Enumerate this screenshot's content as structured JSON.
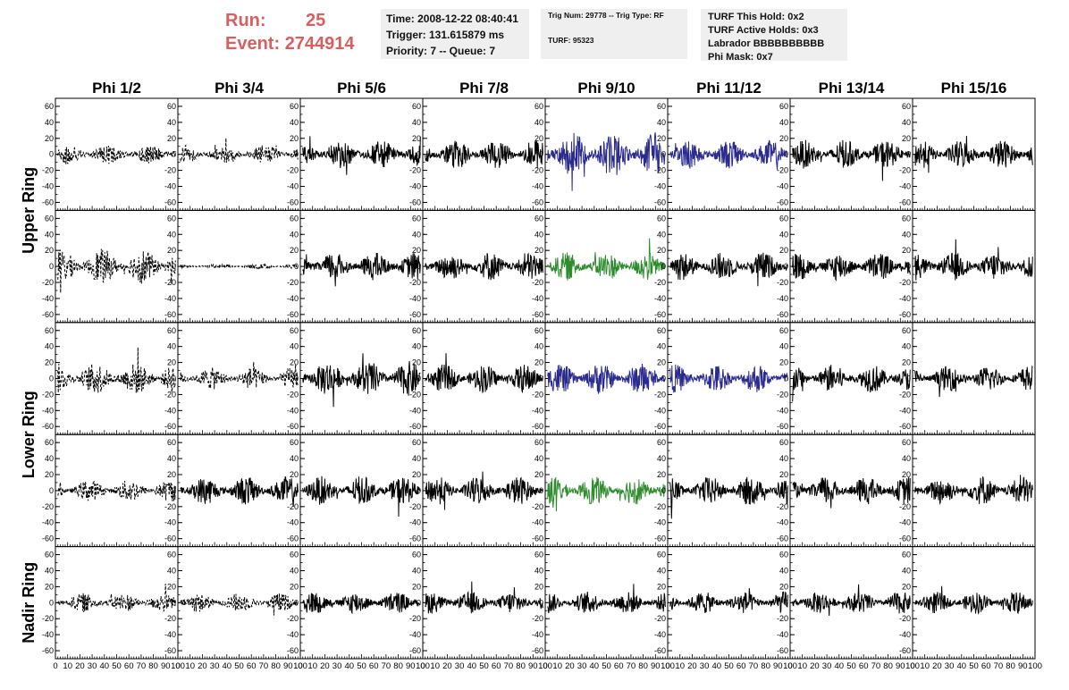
{
  "header": {
    "run_label": "Run:",
    "run_value": "25",
    "event_label": "Event:",
    "event_value": "2744914"
  },
  "info": {
    "time": "Time: 2008-12-22 08:40:41",
    "trigger": "Trigger: 131.615879 ms",
    "priority": "Priority: 7 -- Queue: 7",
    "trig_num": "Trig Num: 29778 -- Trig Type: RF",
    "turf": "TURF: 95323",
    "turf_this_hold": "TURF This Hold: 0x2",
    "turf_active_holds": "TURF Active Holds: 0x3",
    "labrador": "Labrador BBBBBBBBBB",
    "phi_mask": "Phi Mask: 0x7"
  },
  "chart_data": {
    "type": "line",
    "columns": [
      "Phi 1/2",
      "Phi 3/4",
      "Phi 5/6",
      "Phi 7/8",
      "Phi 9/10",
      "Phi 11/12",
      "Phi 13/14",
      "Phi 15/16"
    ],
    "ring_labels": [
      "Upper Ring",
      "Lower Ring",
      "Nadir Ring"
    ],
    "rows": 5,
    "xlim": [
      0,
      100
    ],
    "ylim": [
      -70,
      70
    ],
    "x_ticks": [
      "0",
      "10",
      "20",
      "30",
      "40",
      "50",
      "60",
      "70",
      "80",
      "90",
      "100"
    ],
    "y_ticks": [
      "-60",
      "-40",
      "-20",
      "0",
      "20",
      "40",
      "60"
    ],
    "colors": {
      "default": "#000000",
      "blue": "#2a2a8f",
      "green": "#2e8b2e"
    },
    "panel_styles": [
      [
        "dashed",
        "dashed",
        "solid",
        "solid",
        "blue",
        "blue",
        "solid",
        "solid"
      ],
      [
        "dashed",
        "dashed",
        "solid",
        "solid",
        "green",
        "solid",
        "solid",
        "solid"
      ],
      [
        "dashed",
        "dashed",
        "solid",
        "solid",
        "blue",
        "blue",
        "solid",
        "solid"
      ],
      [
        "dashed",
        "solid",
        "solid",
        "solid",
        "green",
        "solid",
        "solid",
        "solid"
      ],
      [
        "dashed",
        "dashed",
        "solid",
        "solid",
        "solid",
        "solid",
        "solid",
        "solid"
      ]
    ],
    "panel_amplitude": [
      [
        12,
        12,
        18,
        18,
        28,
        18,
        18,
        18
      ],
      [
        22,
        3,
        18,
        18,
        18,
        18,
        18,
        18
      ],
      [
        20,
        14,
        22,
        18,
        20,
        18,
        18,
        16
      ],
      [
        14,
        18,
        18,
        18,
        18,
        18,
        18,
        18
      ],
      [
        12,
        12,
        14,
        14,
        14,
        14,
        14,
        14
      ]
    ]
  }
}
